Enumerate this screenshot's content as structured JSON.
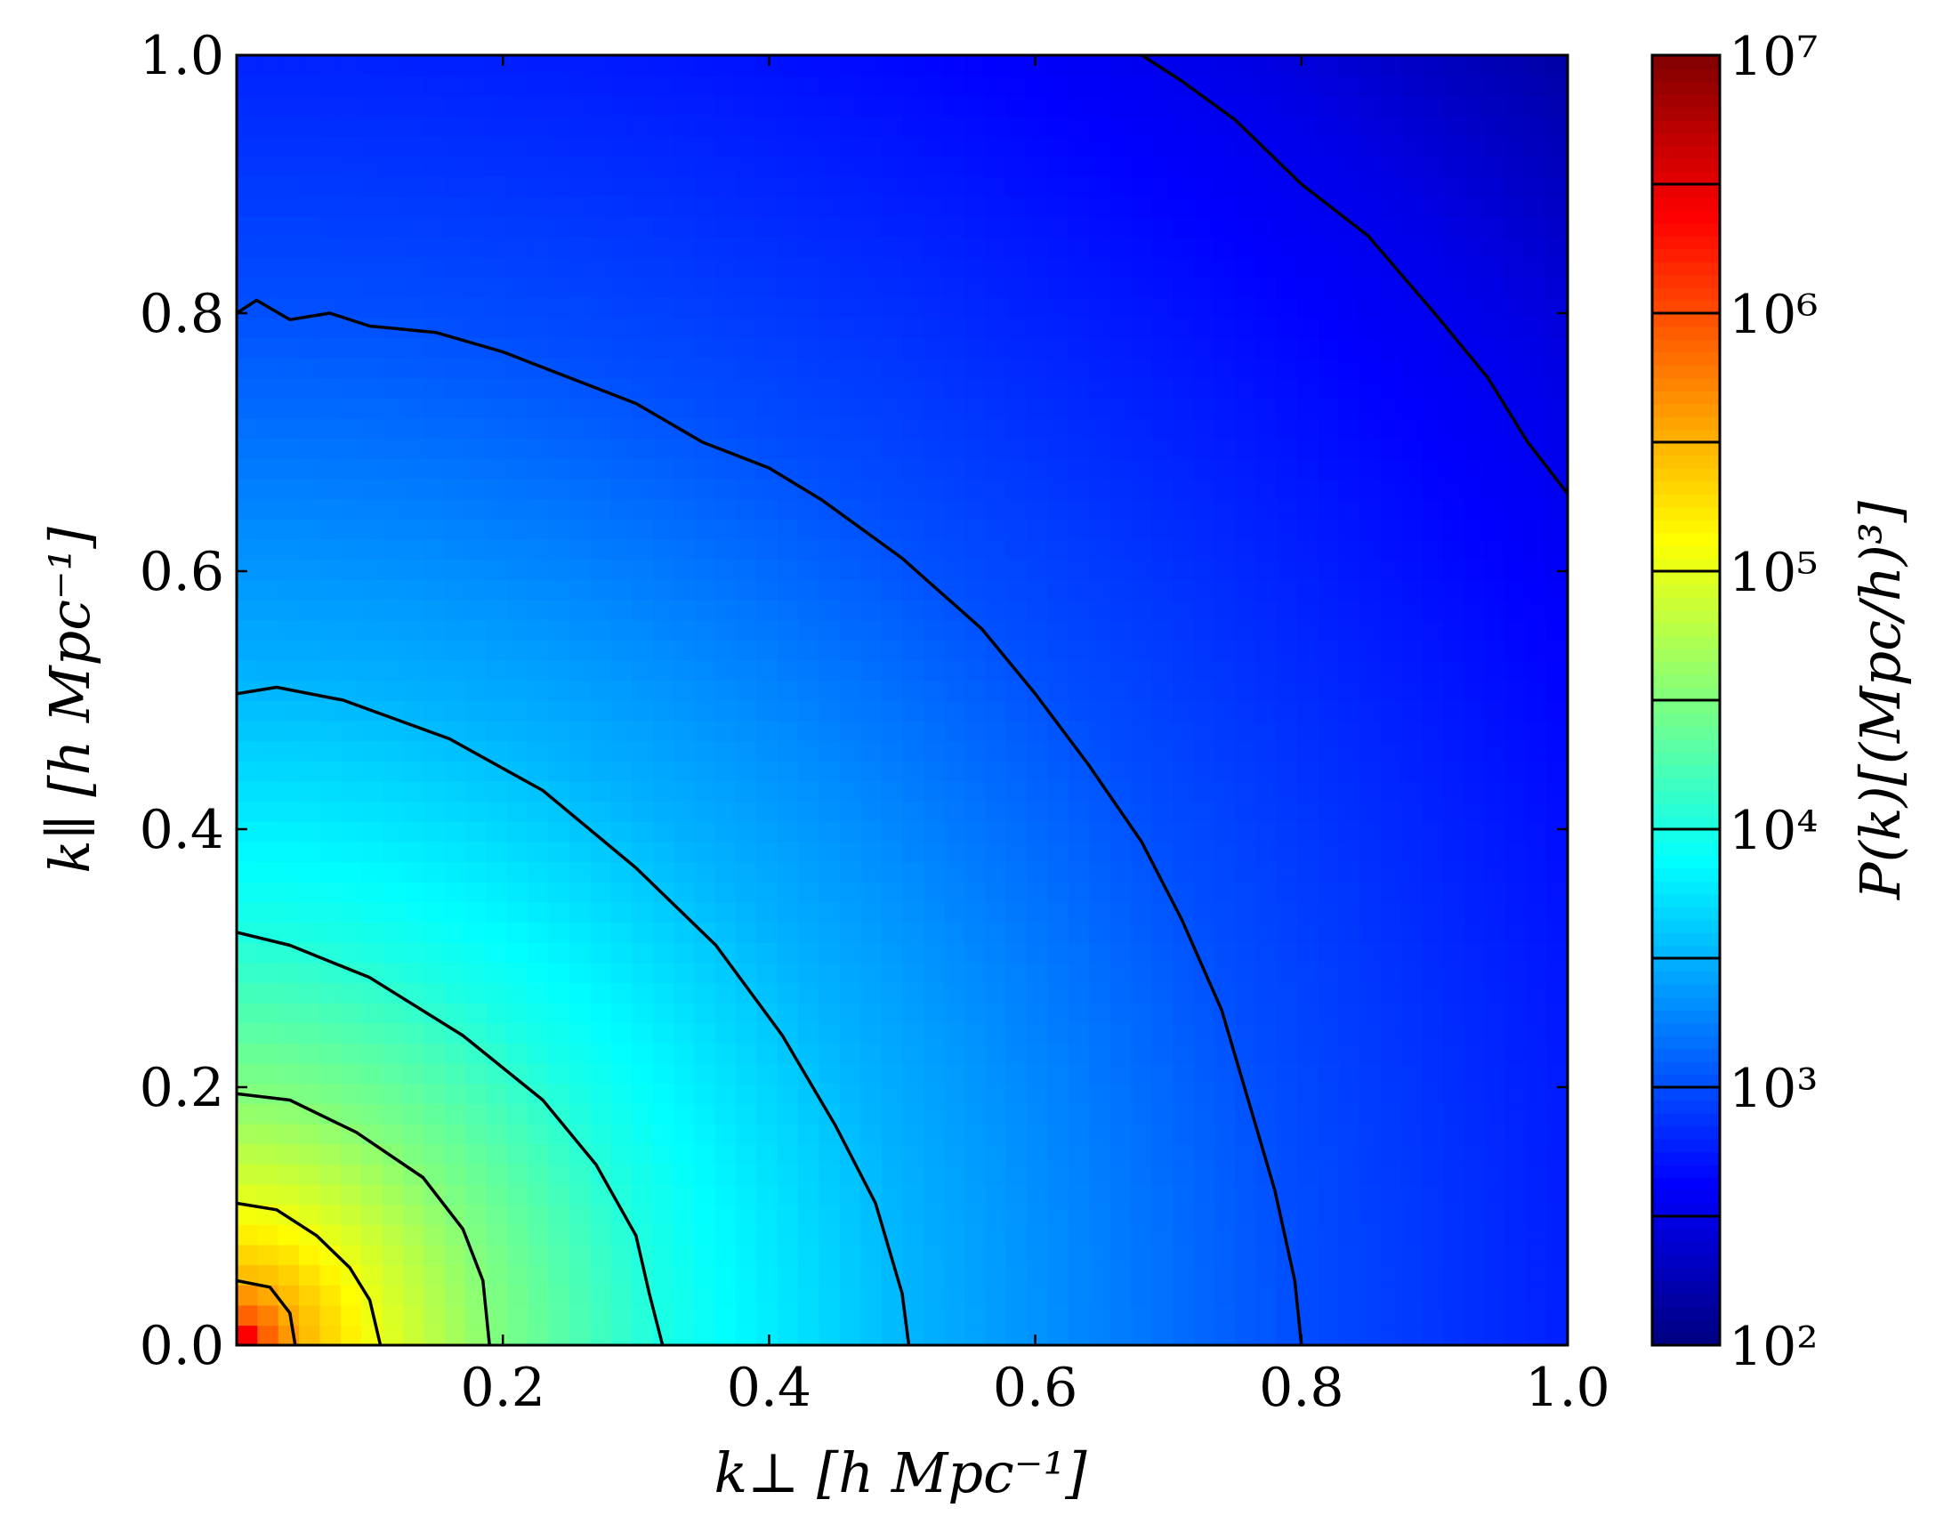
{
  "chart_data": {
    "type": "heatmap",
    "xlabel": "k⊥ [h Mpc⁻¹]",
    "ylabel": "k∥ [h Mpc⁻¹]",
    "xlim": [
      0.0,
      1.0
    ],
    "ylim": [
      0.0,
      1.0
    ],
    "x_ticks": [
      "0.2",
      "0.4",
      "0.6",
      "0.8",
      "1.0"
    ],
    "y_ticks": [
      "0.0",
      "0.2",
      "0.4",
      "0.6",
      "0.8",
      "1.0"
    ],
    "colorbar": {
      "label": "P(k)[(Mpc/h)³]",
      "scale": "log",
      "range": [
        100,
        10000000
      ],
      "tick_labels": [
        "10²",
        "10³",
        "10⁴",
        "10⁵",
        "10⁶",
        "10⁷"
      ],
      "colormap": "jet",
      "level_boundaries_log10": [
        2.0,
        2.5,
        3.0,
        3.5,
        4.0,
        4.5,
        5.0,
        5.5,
        6.0,
        6.5,
        7.0
      ]
    },
    "contours": [
      {
        "level_log10": 5.5,
        "points": [
          [
            0.0,
            0.05
          ],
          [
            0.025,
            0.045
          ],
          [
            0.04,
            0.025
          ],
          [
            0.044,
            0.0
          ]
        ]
      },
      {
        "level_log10": 5.0,
        "points": [
          [
            0.0,
            0.11
          ],
          [
            0.03,
            0.105
          ],
          [
            0.06,
            0.085
          ],
          [
            0.085,
            0.06
          ],
          [
            0.1,
            0.035
          ],
          [
            0.108,
            0.0
          ]
        ]
      },
      {
        "level_log10": 4.5,
        "points": [
          [
            0.0,
            0.195
          ],
          [
            0.04,
            0.19
          ],
          [
            0.09,
            0.165
          ],
          [
            0.14,
            0.13
          ],
          [
            0.17,
            0.09
          ],
          [
            0.185,
            0.05
          ],
          [
            0.19,
            0.0
          ]
        ]
      },
      {
        "level_log10": 4.0,
        "points": [
          [
            0.0,
            0.32
          ],
          [
            0.04,
            0.31
          ],
          [
            0.1,
            0.285
          ],
          [
            0.17,
            0.24
          ],
          [
            0.23,
            0.19
          ],
          [
            0.27,
            0.14
          ],
          [
            0.3,
            0.085
          ],
          [
            0.31,
            0.04
          ],
          [
            0.32,
            0.0
          ]
        ]
      },
      {
        "level_log10": 3.5,
        "points": [
          [
            0.0,
            0.505
          ],
          [
            0.03,
            0.51
          ],
          [
            0.08,
            0.5
          ],
          [
            0.16,
            0.47
          ],
          [
            0.23,
            0.43
          ],
          [
            0.3,
            0.37
          ],
          [
            0.36,
            0.31
          ],
          [
            0.41,
            0.24
          ],
          [
            0.45,
            0.17
          ],
          [
            0.48,
            0.11
          ],
          [
            0.5,
            0.04
          ],
          [
            0.505,
            0.0
          ]
        ]
      },
      {
        "level_log10": 3.0,
        "points": [
          [
            0.0,
            0.8
          ],
          [
            0.015,
            0.81
          ],
          [
            0.04,
            0.795
          ],
          [
            0.07,
            0.8
          ],
          [
            0.1,
            0.79
          ],
          [
            0.15,
            0.785
          ],
          [
            0.2,
            0.77
          ],
          [
            0.25,
            0.75
          ],
          [
            0.3,
            0.73
          ],
          [
            0.35,
            0.7
          ],
          [
            0.4,
            0.68
          ],
          [
            0.44,
            0.655
          ],
          [
            0.5,
            0.61
          ],
          [
            0.56,
            0.555
          ],
          [
            0.6,
            0.505
          ],
          [
            0.64,
            0.45
          ],
          [
            0.68,
            0.39
          ],
          [
            0.71,
            0.33
          ],
          [
            0.74,
            0.26
          ],
          [
            0.76,
            0.19
          ],
          [
            0.78,
            0.12
          ],
          [
            0.795,
            0.05
          ],
          [
            0.8,
            0.0
          ]
        ]
      },
      {
        "level_log10": 2.5,
        "points": [
          [
            0.68,
            1.0
          ],
          [
            0.71,
            0.98
          ],
          [
            0.75,
            0.95
          ],
          [
            0.8,
            0.9
          ],
          [
            0.85,
            0.86
          ],
          [
            0.9,
            0.8
          ],
          [
            0.94,
            0.75
          ],
          [
            0.97,
            0.7
          ],
          [
            1.0,
            0.66
          ]
        ]
      }
    ]
  }
}
